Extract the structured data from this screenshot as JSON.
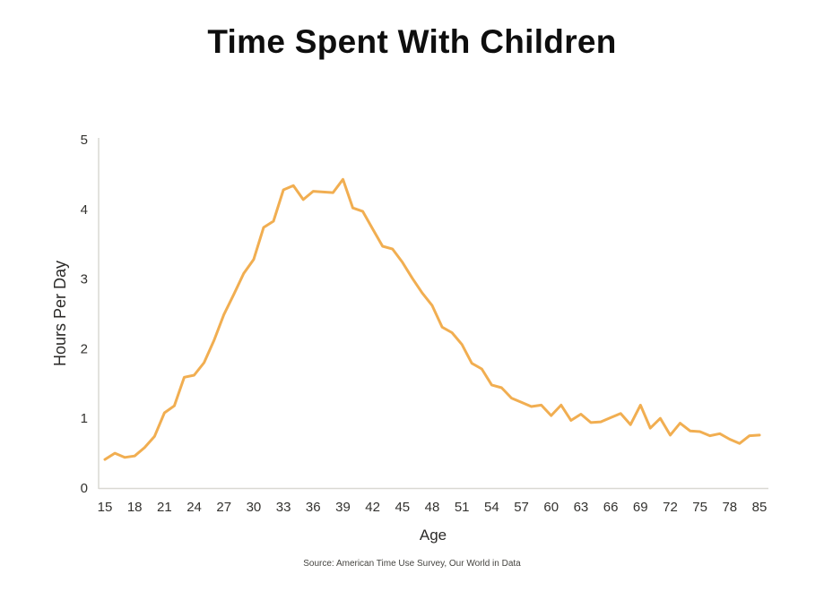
{
  "title": "Time Spent With Children",
  "source_note": "Source: American Time Use Survey, Our World in Data",
  "chart_data": {
    "type": "line",
    "title": "Time Spent With Children",
    "xlabel": "Age",
    "ylabel": "Hours Per Day",
    "x": [
      15,
      16,
      17,
      18,
      19,
      20,
      21,
      22,
      23,
      24,
      25,
      26,
      27,
      28,
      29,
      30,
      31,
      32,
      33,
      34,
      35,
      36,
      37,
      38,
      39,
      40,
      41,
      42,
      43,
      44,
      45,
      46,
      47,
      48,
      49,
      50,
      51,
      52,
      53,
      54,
      55,
      56,
      57,
      58,
      59,
      60,
      61,
      62,
      63,
      64,
      65,
      66,
      67,
      68,
      69,
      70,
      71,
      72,
      73,
      74,
      75,
      76,
      77,
      78,
      79,
      80,
      85
    ],
    "values": [
      0.41,
      0.5,
      0.44,
      0.46,
      0.58,
      0.74,
      1.08,
      1.18,
      1.59,
      1.62,
      1.8,
      2.12,
      2.49,
      2.78,
      3.08,
      3.28,
      3.74,
      3.83,
      4.28,
      4.34,
      4.14,
      4.26,
      4.25,
      4.24,
      4.43,
      4.02,
      3.97,
      3.72,
      3.47,
      3.43,
      3.24,
      3.01,
      2.8,
      2.62,
      2.31,
      2.23,
      2.06,
      1.79,
      1.71,
      1.48,
      1.44,
      1.29,
      1.23,
      1.17,
      1.19,
      1.04,
      1.19,
      0.97,
      1.06,
      0.94,
      0.95,
      1.01,
      1.07,
      0.91,
      1.19,
      0.86,
      1.0,
      0.76,
      0.93,
      0.82,
      0.81,
      0.75,
      0.78,
      0.7,
      0.64,
      0.75,
      0.76
    ],
    "x_ticks": [
      15,
      18,
      21,
      24,
      27,
      30,
      33,
      36,
      39,
      42,
      45,
      48,
      51,
      54,
      57,
      60,
      63,
      66,
      69,
      72,
      75,
      78,
      85
    ],
    "y_ticks": [
      0,
      1,
      2,
      3,
      4,
      5
    ],
    "ylim": [
      0,
      5
    ],
    "grid": false,
    "legend": "none",
    "line_color": "#F1AE51",
    "axis_color": "#D9D8D3",
    "tick_color": "#33322F",
    "source": "Source: American Time Use Survey, Our World in Data"
  }
}
